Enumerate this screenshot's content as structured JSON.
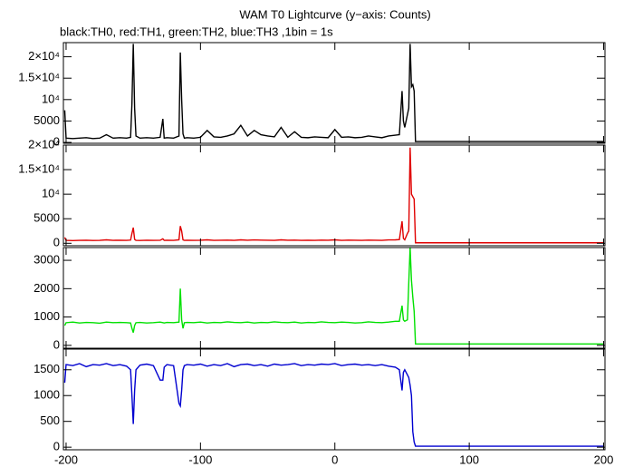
{
  "chart_data": [
    {
      "type": "line",
      "title": "WAM T0 Lightcurve (y−axis: Counts)",
      "subtitle": "black:TH0, red:TH1, green:TH2, blue:TH3 ,1bin = 1s",
      "x": [
        -201,
        -200,
        -195,
        -190,
        -185,
        -180,
        -175,
        -170,
        -165,
        -160,
        -155,
        -152,
        -151,
        -150,
        -149,
        -148,
        -145,
        -140,
        -135,
        -130,
        -128,
        -127,
        -125,
        -120,
        -116,
        -115,
        -114,
        -113,
        -112,
        -110,
        -105,
        -100,
        -95,
        -90,
        -85,
        -80,
        -75,
        -70,
        -65,
        -60,
        -55,
        -50,
        -45,
        -40,
        -35,
        -30,
        -25,
        -20,
        -15,
        -10,
        -5,
        0,
        5,
        10,
        15,
        20,
        25,
        30,
        35,
        40,
        45,
        48,
        50,
        51,
        52,
        54,
        55,
        56,
        57,
        58,
        59,
        60,
        65,
        70,
        80,
        90,
        100,
        120,
        140,
        160,
        180,
        200
      ],
      "xlim": [
        -202,
        201
      ],
      "ylim": [
        -200,
        23300
      ],
      "yticks": [
        0,
        5000,
        {
          "value": 10000,
          "label": "10⁴"
        },
        {
          "value": 15000,
          "label": "1.5×10⁴"
        },
        {
          "value": 20000,
          "label": "2×10⁴"
        }
      ],
      "series": [
        {
          "name": "TH0",
          "color": "#000000",
          "values": [
            7500,
            1000,
            900,
            1000,
            1100,
            900,
            1000,
            1800,
            1000,
            1100,
            1000,
            1200,
            9000,
            23000,
            8000,
            1500,
            1000,
            1100,
            1000,
            1200,
            5500,
            1000,
            1100,
            1000,
            1500,
            21000,
            10000,
            2000,
            1000,
            1100,
            1000,
            1200,
            2800,
            1300,
            1200,
            1500,
            2000,
            4000,
            1500,
            2800,
            1800,
            1500,
            1300,
            3500,
            1200,
            2500,
            1200,
            1100,
            1300,
            1200,
            1100,
            3000,
            1200,
            1300,
            1100,
            1200,
            1500,
            1300,
            1100,
            1500,
            1700,
            1800,
            12000,
            5000,
            3500,
            6500,
            8000,
            23000,
            13000,
            13500,
            12000,
            200,
            200,
            200,
            200,
            200,
            200,
            200,
            200,
            200,
            200,
            200
          ]
        }
      ]
    },
    {
      "type": "line",
      "x": [
        -201,
        -200,
        -195,
        -190,
        -185,
        -180,
        -175,
        -170,
        -165,
        -160,
        -155,
        -152,
        -151,
        -150,
        -149,
        -148,
        -145,
        -140,
        -135,
        -130,
        -128,
        -127,
        -125,
        -120,
        -116,
        -115,
        -114,
        -113,
        -112,
        -110,
        -105,
        -100,
        -95,
        -90,
        -85,
        -80,
        -75,
        -70,
        -65,
        -60,
        -55,
        -50,
        -45,
        -40,
        -35,
        -30,
        -25,
        -20,
        -15,
        -10,
        -5,
        0,
        5,
        10,
        15,
        20,
        25,
        30,
        35,
        40,
        45,
        48,
        50,
        51,
        52,
        54,
        55,
        56,
        57,
        58,
        59,
        60,
        65,
        70,
        80,
        90,
        100,
        120,
        140,
        160,
        180,
        200
      ],
      "xlim": [
        -202,
        201
      ],
      "ylim": [
        -500,
        20000
      ],
      "yticks": [
        0,
        5000,
        {
          "value": 10000,
          "label": "10⁴"
        },
        {
          "value": 15000,
          "label": "1.5×10⁴"
        },
        {
          "value": 20000,
          "label": "2×10⁴"
        }
      ],
      "series": [
        {
          "name": "TH1",
          "color": "#e00000",
          "values": [
            1200,
            600,
            550,
            600,
            620,
            580,
            600,
            700,
            600,
            620,
            600,
            650,
            2000,
            3200,
            800,
            600,
            580,
            620,
            600,
            620,
            900,
            600,
            620,
            600,
            700,
            3500,
            2500,
            700,
            600,
            620,
            600,
            620,
            700,
            600,
            620,
            650,
            600,
            700,
            620,
            680,
            650,
            620,
            600,
            700,
            620,
            650,
            600,
            620,
            600,
            640,
            620,
            700,
            600,
            640,
            620,
            600,
            650,
            620,
            600,
            680,
            700,
            750,
            4500,
            1000,
            700,
            2000,
            2500,
            19500,
            10000,
            9500,
            9000,
            100,
            100,
            100,
            100,
            100,
            100,
            100,
            100,
            100,
            100,
            100
          ]
        }
      ]
    },
    {
      "type": "line",
      "x": [
        -201,
        -200,
        -195,
        -190,
        -185,
        -180,
        -175,
        -170,
        -165,
        -160,
        -155,
        -152,
        -151,
        -150,
        -149,
        -148,
        -145,
        -140,
        -135,
        -130,
        -128,
        -127,
        -125,
        -120,
        -116,
        -115,
        -114,
        -113,
        -112,
        -110,
        -105,
        -100,
        -95,
        -90,
        -85,
        -80,
        -75,
        -70,
        -65,
        -60,
        -55,
        -50,
        -45,
        -40,
        -35,
        -30,
        -25,
        -20,
        -15,
        -10,
        -5,
        0,
        5,
        10,
        15,
        20,
        25,
        30,
        35,
        40,
        45,
        48,
        50,
        51,
        52,
        54,
        55,
        56,
        57,
        58,
        59,
        60,
        65,
        70,
        80,
        90,
        100,
        120,
        140,
        160,
        180,
        200
      ],
      "xlim": [
        -202,
        201
      ],
      "ylim": [
        -100,
        3450
      ],
      "yticks": [
        0,
        1000,
        2000,
        3000
      ],
      "series": [
        {
          "name": "TH2",
          "color": "#00e000",
          "values": [
            700,
            800,
            820,
            790,
            810,
            800,
            780,
            820,
            800,
            810,
            800,
            790,
            600,
            450,
            700,
            800,
            810,
            790,
            800,
            820,
            800,
            790,
            810,
            800,
            820,
            2000,
            900,
            600,
            800,
            810,
            800,
            820,
            790,
            810,
            800,
            830,
            810,
            800,
            820,
            790,
            810,
            800,
            830,
            810,
            800,
            820,
            790,
            810,
            800,
            830,
            810,
            800,
            820,
            810,
            790,
            800,
            830,
            810,
            800,
            820,
            850,
            850,
            1400,
            900,
            850,
            900,
            2200,
            3450,
            2300,
            1700,
            1200,
            50,
            50,
            50,
            50,
            50,
            50,
            50,
            50,
            50,
            50,
            50
          ]
        }
      ]
    },
    {
      "type": "line",
      "x": [
        -201,
        -200,
        -195,
        -190,
        -185,
        -180,
        -175,
        -170,
        -165,
        -160,
        -155,
        -152,
        -151,
        -150,
        -149,
        -148,
        -145,
        -140,
        -135,
        -130,
        -128,
        -127,
        -125,
        -120,
        -116,
        -115,
        -114,
        -113,
        -112,
        -110,
        -105,
        -100,
        -95,
        -90,
        -85,
        -80,
        -75,
        -70,
        -65,
        -60,
        -55,
        -50,
        -45,
        -40,
        -35,
        -30,
        -25,
        -20,
        -15,
        -10,
        -5,
        0,
        5,
        10,
        15,
        20,
        25,
        30,
        35,
        40,
        45,
        48,
        50,
        51,
        52,
        54,
        55,
        56,
        57,
        58,
        59,
        60,
        65,
        70,
        80,
        90,
        100,
        120,
        140,
        160,
        180,
        200
      ],
      "xlim": [
        -202,
        201
      ],
      "ylim": [
        -50,
        1900
      ],
      "xticks": [
        -200,
        -100,
        0,
        100,
        200
      ],
      "yticks": [
        0,
        500,
        1000,
        1500
      ],
      "series": [
        {
          "name": "TH3",
          "color": "#0000d0",
          "values": [
            1250,
            1600,
            1580,
            1620,
            1560,
            1600,
            1590,
            1620,
            1580,
            1600,
            1570,
            1500,
            1000,
            450,
            1100,
            1500,
            1590,
            1610,
            1580,
            1300,
            1300,
            1550,
            1600,
            1580,
            850,
            800,
            1100,
            1500,
            1580,
            1600,
            1590,
            1610,
            1570,
            1600,
            1580,
            1620,
            1560,
            1600,
            1610,
            1580,
            1600,
            1570,
            1610,
            1590,
            1600,
            1620,
            1580,
            1600,
            1590,
            1610,
            1600,
            1620,
            1580,
            1600,
            1610,
            1590,
            1600,
            1580,
            1600,
            1570,
            1550,
            1500,
            1100,
            1450,
            1500,
            1400,
            1350,
            1200,
            1000,
            300,
            100,
            20,
            20,
            20,
            20,
            20,
            20,
            20,
            20,
            20,
            20,
            20
          ]
        }
      ]
    }
  ]
}
